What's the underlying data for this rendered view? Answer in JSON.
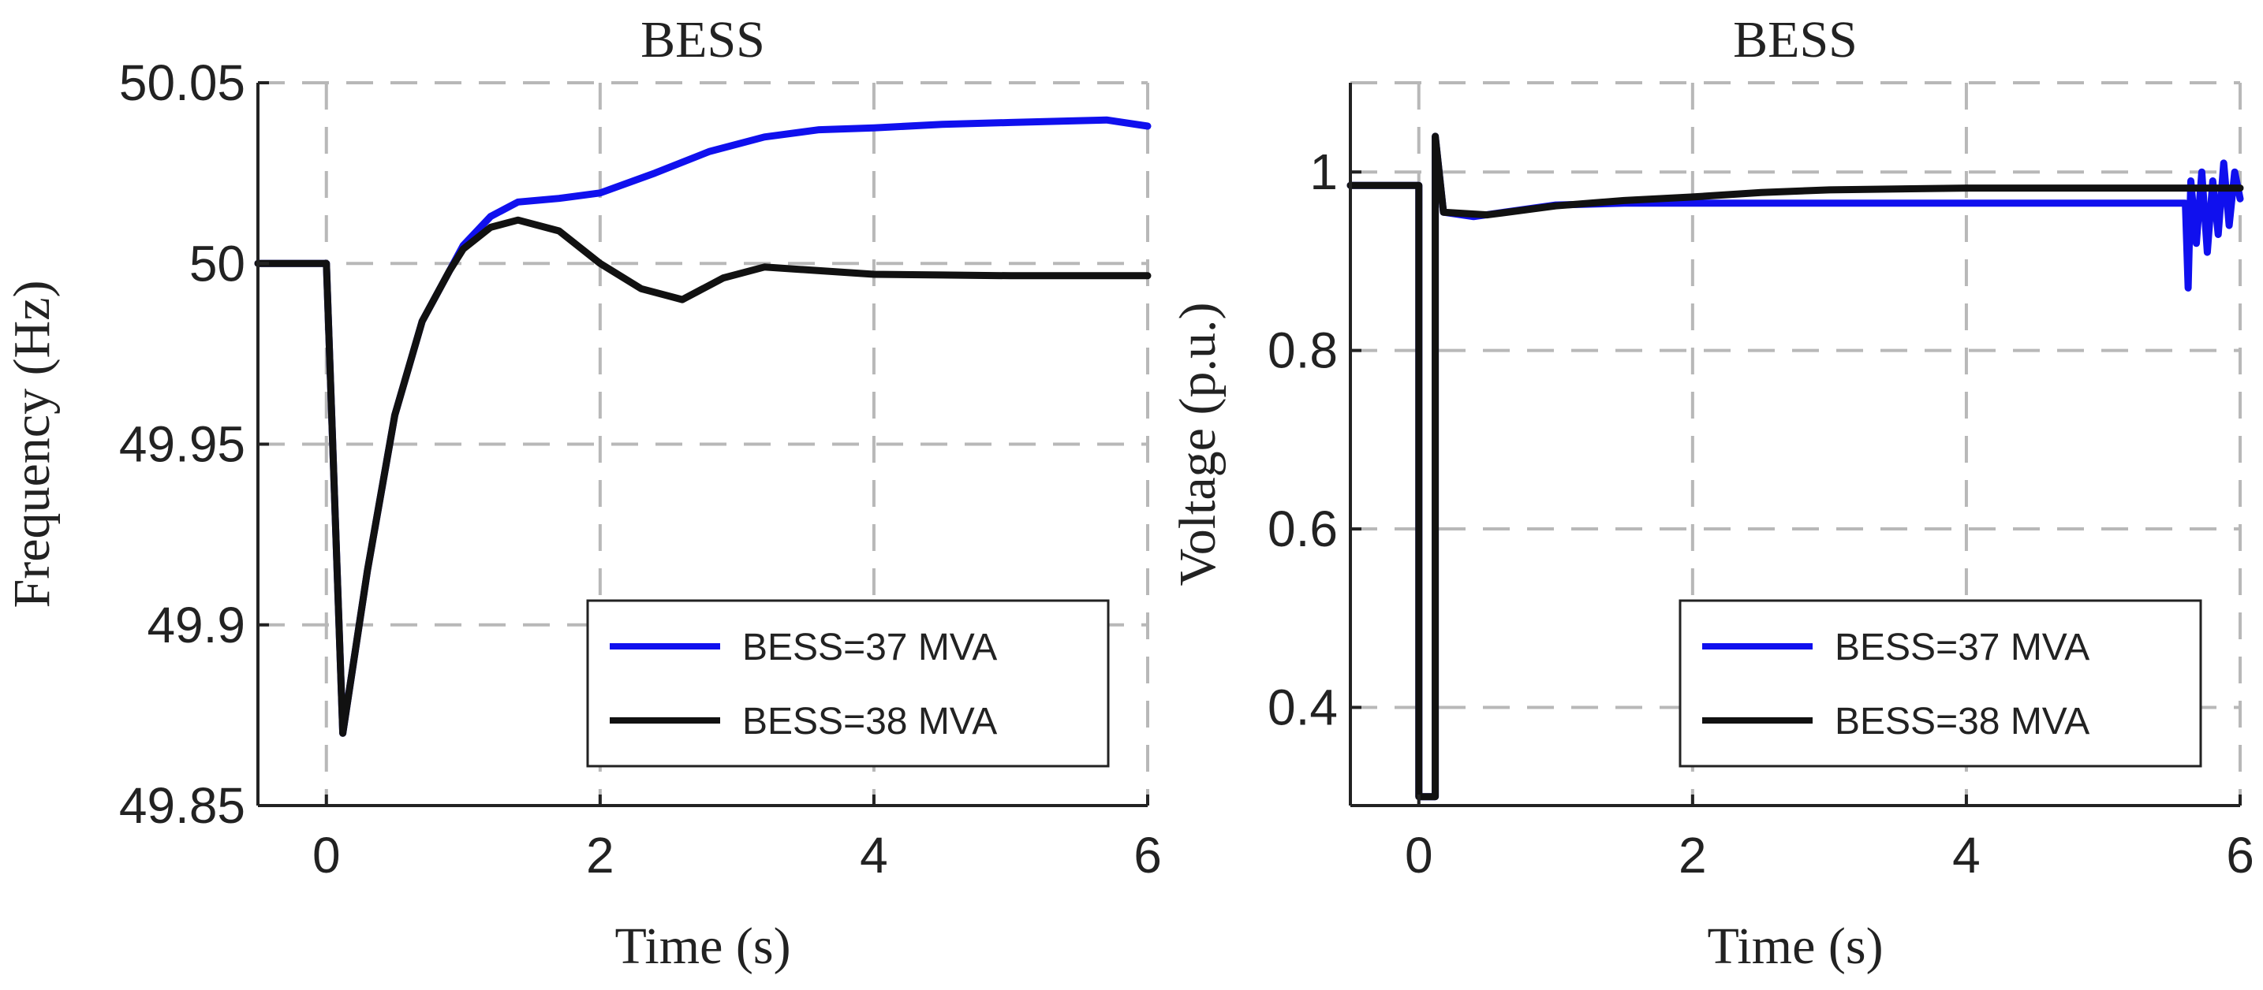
{
  "chart_data": [
    {
      "type": "line",
      "title": "BESS",
      "xlabel": "Time (s)",
      "ylabel": "Frequency (Hz)",
      "xlim": [
        -0.5,
        6
      ],
      "ylim": [
        49.85,
        50.05
      ],
      "xticks": [
        0,
        2,
        4,
        6
      ],
      "xtick_labels": [
        "0",
        "2",
        "4",
        "6"
      ],
      "yticks": [
        49.85,
        49.9,
        49.95,
        50,
        50.05
      ],
      "ytick_labels": [
        "49.85",
        "49.9",
        "49.95",
        "50",
        "50.05"
      ],
      "grid": true,
      "legend_position": "bottom-right",
      "series": [
        {
          "name": "BESS=37 MVA",
          "color": "#1010ee",
          "x": [
            -0.5,
            0.0,
            0.12,
            0.3,
            0.5,
            0.7,
            0.9,
            1.0,
            1.2,
            1.4,
            1.7,
            2.0,
            2.4,
            2.8,
            3.2,
            3.6,
            4.0,
            4.5,
            5.0,
            5.5,
            5.7,
            6.0
          ],
          "y": [
            50.0,
            50.0,
            49.87,
            49.915,
            49.958,
            49.984,
            49.998,
            50.005,
            50.013,
            50.017,
            50.018,
            50.0195,
            50.025,
            50.031,
            50.035,
            50.037,
            50.0375,
            50.0385,
            50.039,
            50.0395,
            50.0397,
            50.038
          ]
        },
        {
          "name": "BESS=38 MVA",
          "color": "#111111",
          "x": [
            -0.5,
            0.0,
            0.12,
            0.3,
            0.5,
            0.7,
            0.9,
            1.0,
            1.2,
            1.4,
            1.7,
            2.0,
            2.3,
            2.6,
            2.9,
            3.2,
            3.6,
            4.0,
            4.5,
            5.0,
            5.5,
            6.0
          ],
          "y": [
            50.0,
            50.0,
            49.87,
            49.915,
            49.958,
            49.984,
            49.998,
            50.004,
            50.01,
            50.012,
            50.009,
            50.0,
            49.993,
            49.99,
            49.996,
            49.999,
            49.998,
            49.997,
            49.9968,
            49.9966,
            49.9966,
            49.9966
          ]
        }
      ]
    },
    {
      "type": "line",
      "title": "BESS",
      "xlabel": "Time (s)",
      "ylabel": "Voltage (p.u.)",
      "xlim": [
        -0.5,
        6
      ],
      "ylim": [
        0.29,
        1.1
      ],
      "xticks": [
        0,
        2,
        4,
        6
      ],
      "xtick_labels": [
        "0",
        "2",
        "4",
        "6"
      ],
      "yticks": [
        0.4,
        0.6,
        0.8,
        1.0
      ],
      "ytick_labels": [
        "0.4",
        "0.6",
        "0.8",
        "1"
      ],
      "grid": true,
      "legend_position": "bottom-right",
      "series": [
        {
          "name": "BESS=37 MVA",
          "color": "#1010ee",
          "x": [
            -0.5,
            0.0,
            0.0,
            0.12,
            0.12,
            0.18,
            0.4,
            1.0,
            1.5,
            2.0,
            3.0,
            4.0,
            5.0,
            5.6,
            5.62,
            5.64,
            5.68,
            5.72,
            5.76,
            5.8,
            5.84,
            5.88,
            5.92,
            5.96,
            6.0
          ],
          "y": [
            0.985,
            0.985,
            0.3,
            0.3,
            1.04,
            0.955,
            0.95,
            0.963,
            0.965,
            0.965,
            0.965,
            0.965,
            0.965,
            0.965,
            0.87,
            0.99,
            0.92,
            1.0,
            0.91,
            0.99,
            0.93,
            1.01,
            0.94,
            1.0,
            0.97
          ]
        },
        {
          "name": "BESS=38 MVA",
          "color": "#111111",
          "x": [
            -0.5,
            0.0,
            0.0,
            0.12,
            0.12,
            0.18,
            0.5,
            1.0,
            1.5,
            2.0,
            2.5,
            3.0,
            4.0,
            5.0,
            6.0
          ],
          "y": [
            0.985,
            0.985,
            0.3,
            0.3,
            1.04,
            0.955,
            0.952,
            0.962,
            0.968,
            0.972,
            0.977,
            0.98,
            0.982,
            0.982,
            0.982
          ]
        }
      ]
    }
  ]
}
